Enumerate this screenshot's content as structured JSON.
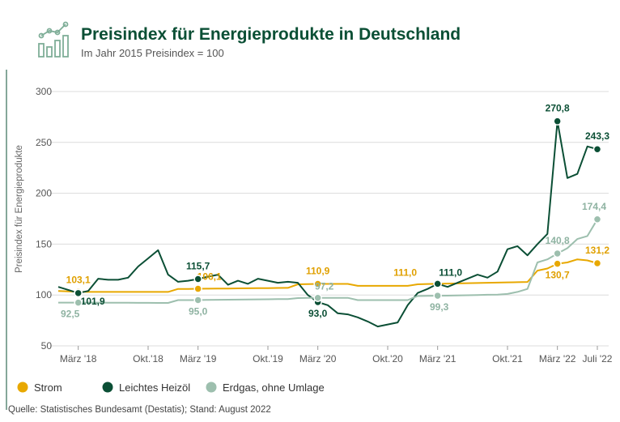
{
  "chart_data": {
    "type": "line",
    "title": "Preisindex für Energieprodukte in Deutschland",
    "subtitle": "Im Jahr 2015 Preisindex = 100",
    "ylabel": "Preisindex für Energieprodukte",
    "source": "Quelle: Statistisches Bundesamt (Destatis); Stand: August 2022",
    "categories": [
      null,
      null,
      "März '18",
      null,
      null,
      null,
      null,
      null,
      null,
      "Okt.'18",
      null,
      null,
      null,
      null,
      "März '19",
      null,
      null,
      null,
      null,
      null,
      null,
      "Okt.'19",
      null,
      null,
      null,
      null,
      "März '20",
      null,
      null,
      null,
      null,
      null,
      null,
      "Okt.'20",
      null,
      null,
      null,
      null,
      "März '21",
      null,
      null,
      null,
      null,
      null,
      null,
      "Okt.'21",
      null,
      null,
      null,
      null,
      "März '22",
      null,
      null,
      null,
      "Juli '22"
    ],
    "ylim": [
      50,
      300
    ],
    "yticks": [
      50,
      100,
      150,
      200,
      250,
      300
    ],
    "grid": true,
    "series": [
      {
        "name": "Strom",
        "color": "#e8a800",
        "values": [
          104,
          103.5,
          103.1,
          103,
          103,
          103,
          103,
          103,
          103,
          103,
          103,
          103,
          106,
          106,
          106.1,
          106.2,
          106.3,
          106.4,
          106.5,
          106.6,
          106.7,
          106.8,
          106.9,
          107,
          110.5,
          110.7,
          110.9,
          110.9,
          110.9,
          110.9,
          109,
          109,
          109,
          109,
          109,
          109,
          110.5,
          110.8,
          111.0,
          111.2,
          111.4,
          111.6,
          111.8,
          112,
          112.2,
          112.4,
          112.6,
          112.8,
          124,
          126,
          130.7,
          132,
          135,
          134,
          131.2
        ],
        "value_labels": [
          null,
          null,
          "103,1",
          null,
          null,
          null,
          null,
          null,
          null,
          null,
          null,
          null,
          null,
          null,
          "106,1",
          null,
          null,
          null,
          null,
          null,
          null,
          null,
          null,
          null,
          null,
          null,
          "110,9",
          null,
          null,
          null,
          null,
          null,
          null,
          null,
          null,
          null,
          null,
          null,
          "111,0",
          null,
          null,
          null,
          null,
          null,
          null,
          null,
          null,
          null,
          null,
          null,
          "130,7",
          null,
          null,
          null,
          "131,2"
        ]
      },
      {
        "name": "Leichtes Heizöl",
        "color": "#0b4f35",
        "values": [
          108,
          105,
          101.9,
          104,
          116,
          115,
          115,
          117,
          128,
          136,
          144,
          120,
          113,
          114,
          115.7,
          118,
          120,
          110,
          114,
          111,
          116,
          114,
          112,
          113,
          112,
          100,
          93.0,
          90,
          82,
          81,
          78,
          74,
          69,
          71,
          73,
          90,
          102,
          106,
          111.0,
          108,
          112,
          116,
          120,
          117,
          123,
          145,
          148,
          139,
          150,
          160,
          270.8,
          215,
          219,
          246,
          243.3
        ],
        "value_labels": [
          null,
          null,
          "101,9",
          null,
          null,
          null,
          null,
          null,
          null,
          null,
          null,
          null,
          null,
          null,
          "115,7",
          null,
          null,
          null,
          null,
          null,
          null,
          null,
          null,
          null,
          null,
          null,
          "93,0",
          null,
          null,
          null,
          null,
          null,
          null,
          null,
          null,
          null,
          null,
          null,
          "111,0",
          null,
          null,
          null,
          null,
          null,
          null,
          null,
          null,
          null,
          null,
          null,
          "270,8",
          null,
          null,
          null,
          "243,3"
        ]
      },
      {
        "name": "Erdgas, ohne Umlage",
        "color": "#9dbfae",
        "values": [
          92.5,
          92.5,
          92.5,
          92.5,
          92.5,
          92.4,
          92.4,
          92.4,
          92.3,
          92.3,
          92.2,
          92.2,
          95,
          95,
          95.0,
          95.2,
          95.3,
          95.4,
          95.5,
          95.6,
          95.7,
          95.8,
          95.9,
          96,
          97,
          97.1,
          97.2,
          97.2,
          97.2,
          97.2,
          95,
          95,
          95,
          95,
          95,
          95,
          99,
          99.1,
          99.3,
          99.4,
          99.6,
          99.8,
          100,
          100.2,
          100.4,
          101,
          103,
          106,
          132,
          135,
          140.8,
          146,
          155,
          158,
          174.4
        ],
        "value_labels": [
          null,
          null,
          "92,5",
          null,
          null,
          null,
          null,
          null,
          null,
          null,
          null,
          null,
          null,
          null,
          "95,0",
          null,
          null,
          null,
          null,
          null,
          null,
          null,
          null,
          null,
          null,
          null,
          "97,2",
          null,
          null,
          null,
          null,
          null,
          null,
          null,
          null,
          null,
          null,
          null,
          "99,3",
          null,
          null,
          null,
          null,
          null,
          null,
          null,
          null,
          null,
          null,
          null,
          "140,8",
          null,
          null,
          null,
          "174,4"
        ]
      }
    ]
  }
}
